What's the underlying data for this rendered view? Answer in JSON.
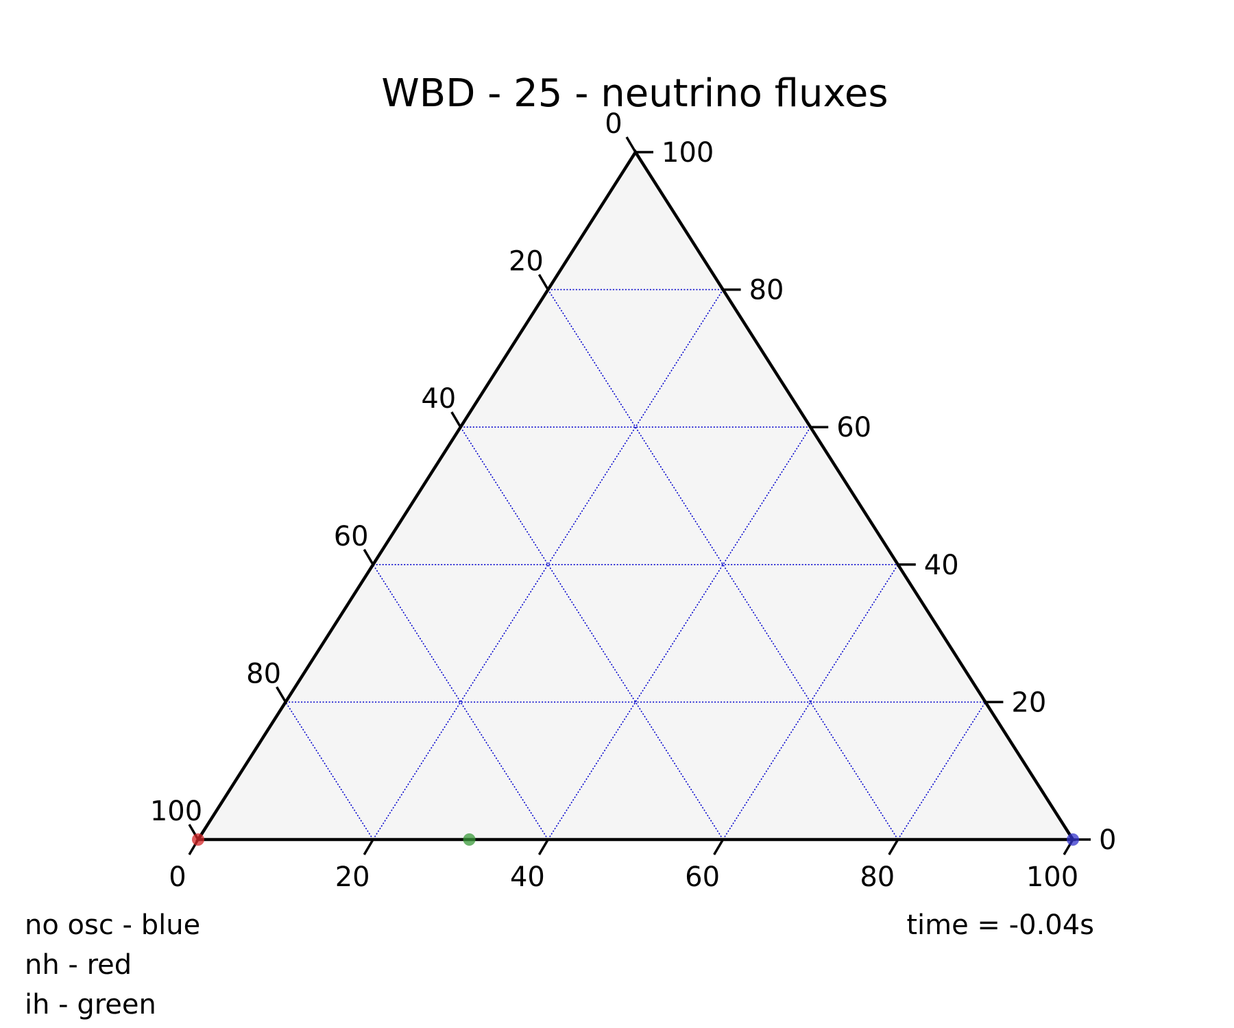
{
  "chart_data": {
    "type": "scatter",
    "subtype": "ternary",
    "title": "WBD - 25 - neutrino fluxes",
    "axes": {
      "bottom": {
        "ticks": [
          "0",
          "20",
          "40",
          "60",
          "80",
          "100"
        ],
        "range": [
          0,
          100
        ]
      },
      "right": {
        "ticks": [
          "0",
          "20",
          "40",
          "60",
          "80",
          "100"
        ],
        "range": [
          0,
          100
        ]
      },
      "left": {
        "ticks": [
          "0",
          "20",
          "40",
          "60",
          "80",
          "100"
        ],
        "range": [
          0,
          100
        ]
      }
    },
    "grid": true,
    "grid_step": 20,
    "colors": {
      "background": "#f5f5f5",
      "frame": "#000000",
      "grid": "#0000cc",
      "no_osc": "#3333cc",
      "nh": "#d62728",
      "ih": "#3a9a3a"
    },
    "points": [
      {
        "label": "no osc",
        "bottom": 100,
        "right": 0,
        "left": 0,
        "color": "#3333cc"
      },
      {
        "label": "nh",
        "bottom": 0,
        "right": 0,
        "left": 100,
        "color": "#d62728"
      },
      {
        "label": "ih",
        "bottom": 31,
        "right": 0,
        "left": 69,
        "color": "#3a9a3a"
      }
    ],
    "legend_notes": [
      "no osc - blue",
      "nh - red",
      "ih - green"
    ],
    "time_label": "time = -0.04s"
  }
}
